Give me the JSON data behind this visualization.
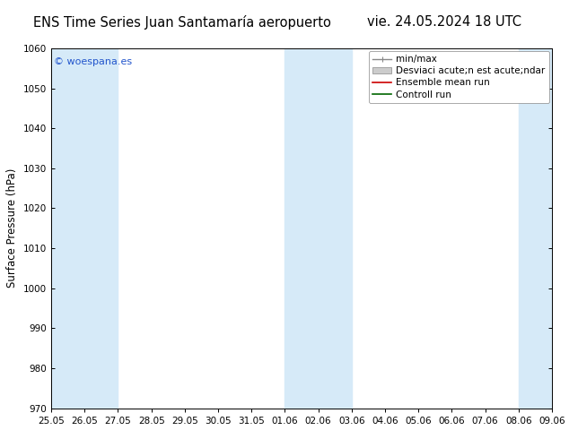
{
  "title_left": "ENS Time Series Juan Santamaría aeropuerto",
  "title_right": "vie. 24.05.2024 18 UTC",
  "ylabel": "Surface Pressure (hPa)",
  "ylim": [
    970,
    1060
  ],
  "yticks": [
    970,
    980,
    990,
    1000,
    1010,
    1020,
    1030,
    1040,
    1050,
    1060
  ],
  "xtick_labels": [
    "25.05",
    "26.05",
    "27.05",
    "28.05",
    "29.05",
    "30.05",
    "31.05",
    "01.06",
    "02.06",
    "03.06",
    "04.06",
    "05.06",
    "06.06",
    "07.06",
    "08.06",
    "09.06"
  ],
  "band_color": "#d6eaf8",
  "band_ranges": [
    [
      0,
      1
    ],
    [
      1,
      2
    ],
    [
      7,
      8
    ],
    [
      8,
      9
    ],
    [
      14,
      15
    ]
  ],
  "watermark": "© woespana.es",
  "watermark_color": "#2255cc",
  "legend_entries": [
    "min/max",
    "Desviaci acute;n est acute;ndar",
    "Ensemble mean run",
    "Controll run"
  ],
  "bg_color": "#ffffff",
  "title_fontsize": 10.5,
  "tick_fontsize": 7.5,
  "ylabel_fontsize": 8.5,
  "legend_fontsize": 7.5
}
